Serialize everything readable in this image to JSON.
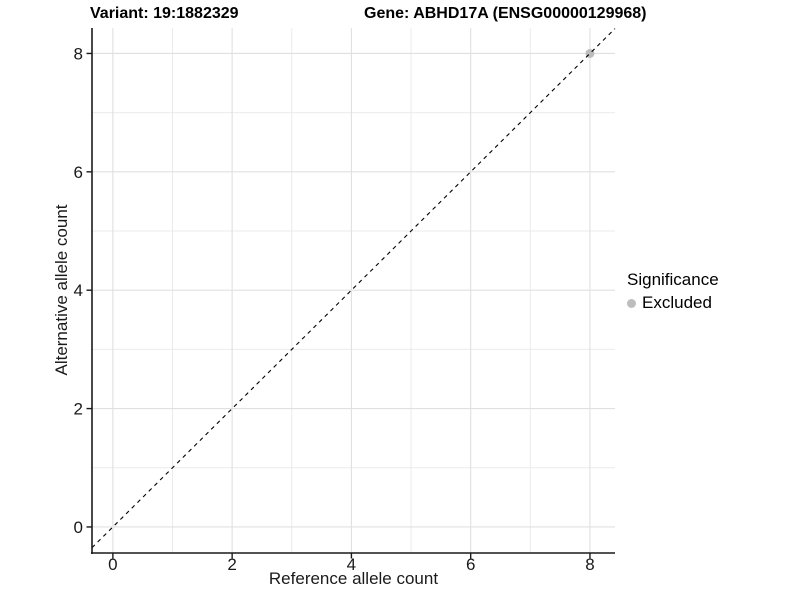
{
  "titles": {
    "variant": "Variant: 19:1882329",
    "gene": "Gene: ABHD17A (ENSG00000129968)"
  },
  "chart_data": {
    "type": "scatter",
    "xlabel": "Reference allele count",
    "ylabel": "Alternative allele count",
    "xlim": [
      -0.35,
      8.42
    ],
    "ylim": [
      -0.44,
      8.43
    ],
    "xticks": [
      0,
      2,
      4,
      6,
      8
    ],
    "yticks": [
      0,
      2,
      4,
      6,
      8
    ],
    "x_minor": [
      1,
      3,
      5,
      7
    ],
    "y_minor": [
      1,
      3,
      5,
      7
    ],
    "grid": "on",
    "reference_line": {
      "kind": "identity",
      "style": "dashed",
      "color": "#000000"
    },
    "points": [
      {
        "x": 8,
        "y": 8,
        "series": "Excluded"
      }
    ],
    "series_colors": {
      "Excluded": "#bdbdbd"
    },
    "legend": {
      "title": "Significance",
      "position": "right",
      "items": [
        {
          "label": "Excluded",
          "color": "#bdbdbd"
        }
      ]
    }
  },
  "colors": {
    "grid_major": "#e0e0e0",
    "grid_minor": "#ebebeb",
    "axis": "#1a1a1a",
    "tick_text": "#1a1a1a"
  }
}
